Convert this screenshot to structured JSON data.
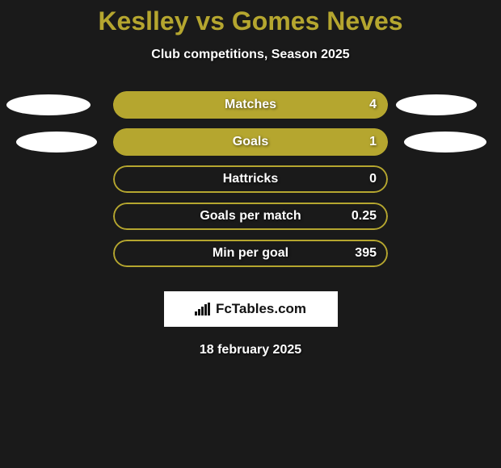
{
  "title": "Keslley vs Gomes Neves",
  "subtitle": "Club competitions, Season 2025",
  "colors": {
    "background": "#1a1a1a",
    "accent": "#b5a62f",
    "bar_fill": "#b5a62f",
    "bar_border": "#b5a62f",
    "ellipse": "#ffffff",
    "text": "#ffffff"
  },
  "stats": [
    {
      "label": "Matches",
      "value": "4",
      "fill_percent": 100,
      "show_ellipse_left": "large",
      "show_ellipse_right": "small"
    },
    {
      "label": "Goals",
      "value": "1",
      "fill_percent": 100,
      "show_ellipse_left": "small",
      "show_ellipse_right": "large"
    },
    {
      "label": "Hattricks",
      "value": "0",
      "fill_percent": 0,
      "show_ellipse_left": null,
      "show_ellipse_right": null
    },
    {
      "label": "Goals per match",
      "value": "0.25",
      "fill_percent": 0,
      "show_ellipse_left": null,
      "show_ellipse_right": null
    },
    {
      "label": "Min per goal",
      "value": "395",
      "fill_percent": 0,
      "show_ellipse_left": null,
      "show_ellipse_right": null
    }
  ],
  "brand": "FcTables.com",
  "date": "18 february 2025"
}
